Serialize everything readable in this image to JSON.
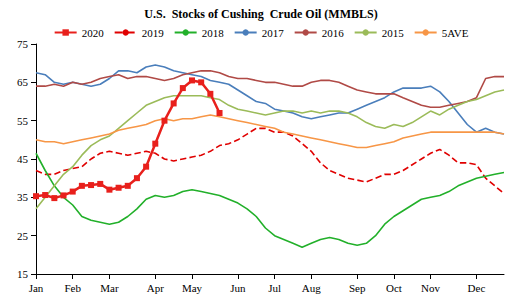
{
  "chart_data": {
    "type": "line",
    "title": "U.S.  Stocks of Cushing  Crude Oil (MMBLS)",
    "categories": [
      "Jan",
      null,
      null,
      null,
      "Feb",
      null,
      null,
      null,
      "Mar",
      null,
      null,
      null,
      null,
      "Apr",
      null,
      null,
      null,
      "May",
      null,
      null,
      null,
      null,
      "Jun",
      null,
      null,
      null,
      "Jul",
      null,
      null,
      null,
      "Aug",
      null,
      null,
      null,
      null,
      "Sep",
      null,
      null,
      null,
      "Oct",
      null,
      null,
      null,
      "Nov",
      null,
      null,
      null,
      null,
      "Dec",
      null,
      null,
      null
    ],
    "ylim": [
      15,
      75
    ],
    "yticks": [
      15,
      25,
      35,
      45,
      55,
      65,
      75
    ],
    "grid": false,
    "legend": "top",
    "series": [
      {
        "name": "2020",
        "color": "#e8201c",
        "marker": "square",
        "line_style": "solid",
        "values": [
          35.3,
          35.6,
          34.8,
          35.5,
          36.5,
          38,
          38.2,
          38.5,
          37,
          37.5,
          38,
          40,
          43,
          49,
          55,
          59.5,
          63.5,
          65.5,
          65,
          62,
          57,
          null,
          null,
          null,
          null,
          null,
          null,
          null,
          null,
          null,
          null,
          null,
          null,
          null,
          null,
          null,
          null,
          null,
          null,
          null,
          null,
          null,
          null,
          null,
          null,
          null,
          null,
          null,
          null,
          null,
          null,
          null
        ]
      },
      {
        "name": "2019",
        "color": "#e00000",
        "line_style": "dashed",
        "values": [
          42,
          41,
          41,
          42,
          42.5,
          43,
          45,
          46.5,
          47,
          46.5,
          46,
          46.5,
          47,
          46.5,
          45,
          44.5,
          45,
          45.5,
          46,
          47,
          48.5,
          49,
          50,
          51.5,
          53,
          53,
          52,
          52,
          51,
          49,
          47,
          44,
          42,
          41,
          40,
          39.5,
          39,
          40,
          41,
          41,
          42,
          43.5,
          45,
          46.5,
          47.5,
          46,
          44,
          44,
          43.5,
          40,
          38,
          36
        ]
      },
      {
        "name": "2018",
        "color": "#22b02a",
        "line_style": "solid",
        "values": [
          46.5,
          42,
          38,
          35,
          33,
          30,
          29,
          28.5,
          28,
          28.5,
          30,
          32,
          34.5,
          35.5,
          35,
          35.5,
          36.5,
          37,
          36.5,
          36,
          35.5,
          34.5,
          33.5,
          32,
          30,
          27,
          25,
          24,
          23,
          22,
          23,
          24,
          24.5,
          24,
          23,
          22.5,
          23,
          25,
          28,
          30,
          31.5,
          33,
          34.5,
          35,
          35.5,
          36.5,
          38,
          39,
          40,
          40.5,
          41,
          41.5
        ]
      },
      {
        "name": "2017",
        "color": "#4a7ebb",
        "line_style": "solid",
        "values": [
          67.5,
          67,
          65,
          64.5,
          65,
          64.5,
          64,
          64.5,
          66,
          68,
          68,
          67.5,
          69,
          69.5,
          69,
          68,
          67.5,
          67,
          66.5,
          65.5,
          65,
          64.5,
          63,
          61.5,
          60,
          59.5,
          58,
          57.5,
          57,
          56,
          55.5,
          56,
          56.5,
          57,
          57,
          58,
          59,
          60,
          61,
          62.5,
          63.5,
          63.5,
          63.5,
          64,
          62.5,
          60,
          57,
          54,
          52,
          53,
          52,
          51.5
        ]
      },
      {
        "name": "2016",
        "color": "#b04a46",
        "line_style": "solid",
        "values": [
          64,
          64,
          64.5,
          64,
          65,
          64.5,
          65,
          66,
          66.5,
          67,
          66,
          66.5,
          66.5,
          66,
          65.5,
          66,
          67,
          67.5,
          68,
          68,
          67.5,
          66.5,
          66,
          66,
          65.5,
          65,
          65,
          64.5,
          64,
          64,
          65,
          65.5,
          65.5,
          65,
          64,
          63,
          62.5,
          62,
          62,
          62,
          61,
          60,
          59,
          58.5,
          58.5,
          59,
          59.5,
          60,
          61,
          66,
          66.5,
          66.5
        ]
      },
      {
        "name": "2015",
        "color": "#9bbb59",
        "line_style": "solid",
        "values": [
          32,
          35,
          38,
          41,
          43,
          46,
          48.5,
          50,
          51,
          53,
          55,
          57,
          59,
          60,
          61,
          61.5,
          61.5,
          61.5,
          61.5,
          61,
          60.5,
          59,
          58,
          57.5,
          57,
          56.5,
          57,
          57.5,
          57.5,
          57,
          57.5,
          57,
          57.5,
          57.5,
          57,
          56,
          54.5,
          53.5,
          53,
          54,
          53.5,
          54.5,
          56,
          57.5,
          56.5,
          58,
          59,
          60,
          60.5,
          61.5,
          62.5,
          63
        ]
      },
      {
        "name": "5AVE",
        "color": "#f79646",
        "line_style": "solid",
        "values": [
          50,
          49.5,
          49.5,
          49,
          49.5,
          50,
          50.5,
          51,
          51.5,
          52.5,
          53,
          53.5,
          54,
          55,
          55.5,
          55,
          55.5,
          55.5,
          56,
          56.5,
          56,
          55.5,
          55,
          54.5,
          54,
          53.5,
          53,
          52,
          51.5,
          51,
          50.5,
          50,
          49.5,
          49,
          48.5,
          48,
          48,
          48.5,
          49,
          49.5,
          50.5,
          51,
          51.5,
          52,
          52,
          52,
          52,
          52,
          52,
          52,
          52,
          51.5
        ]
      }
    ]
  }
}
